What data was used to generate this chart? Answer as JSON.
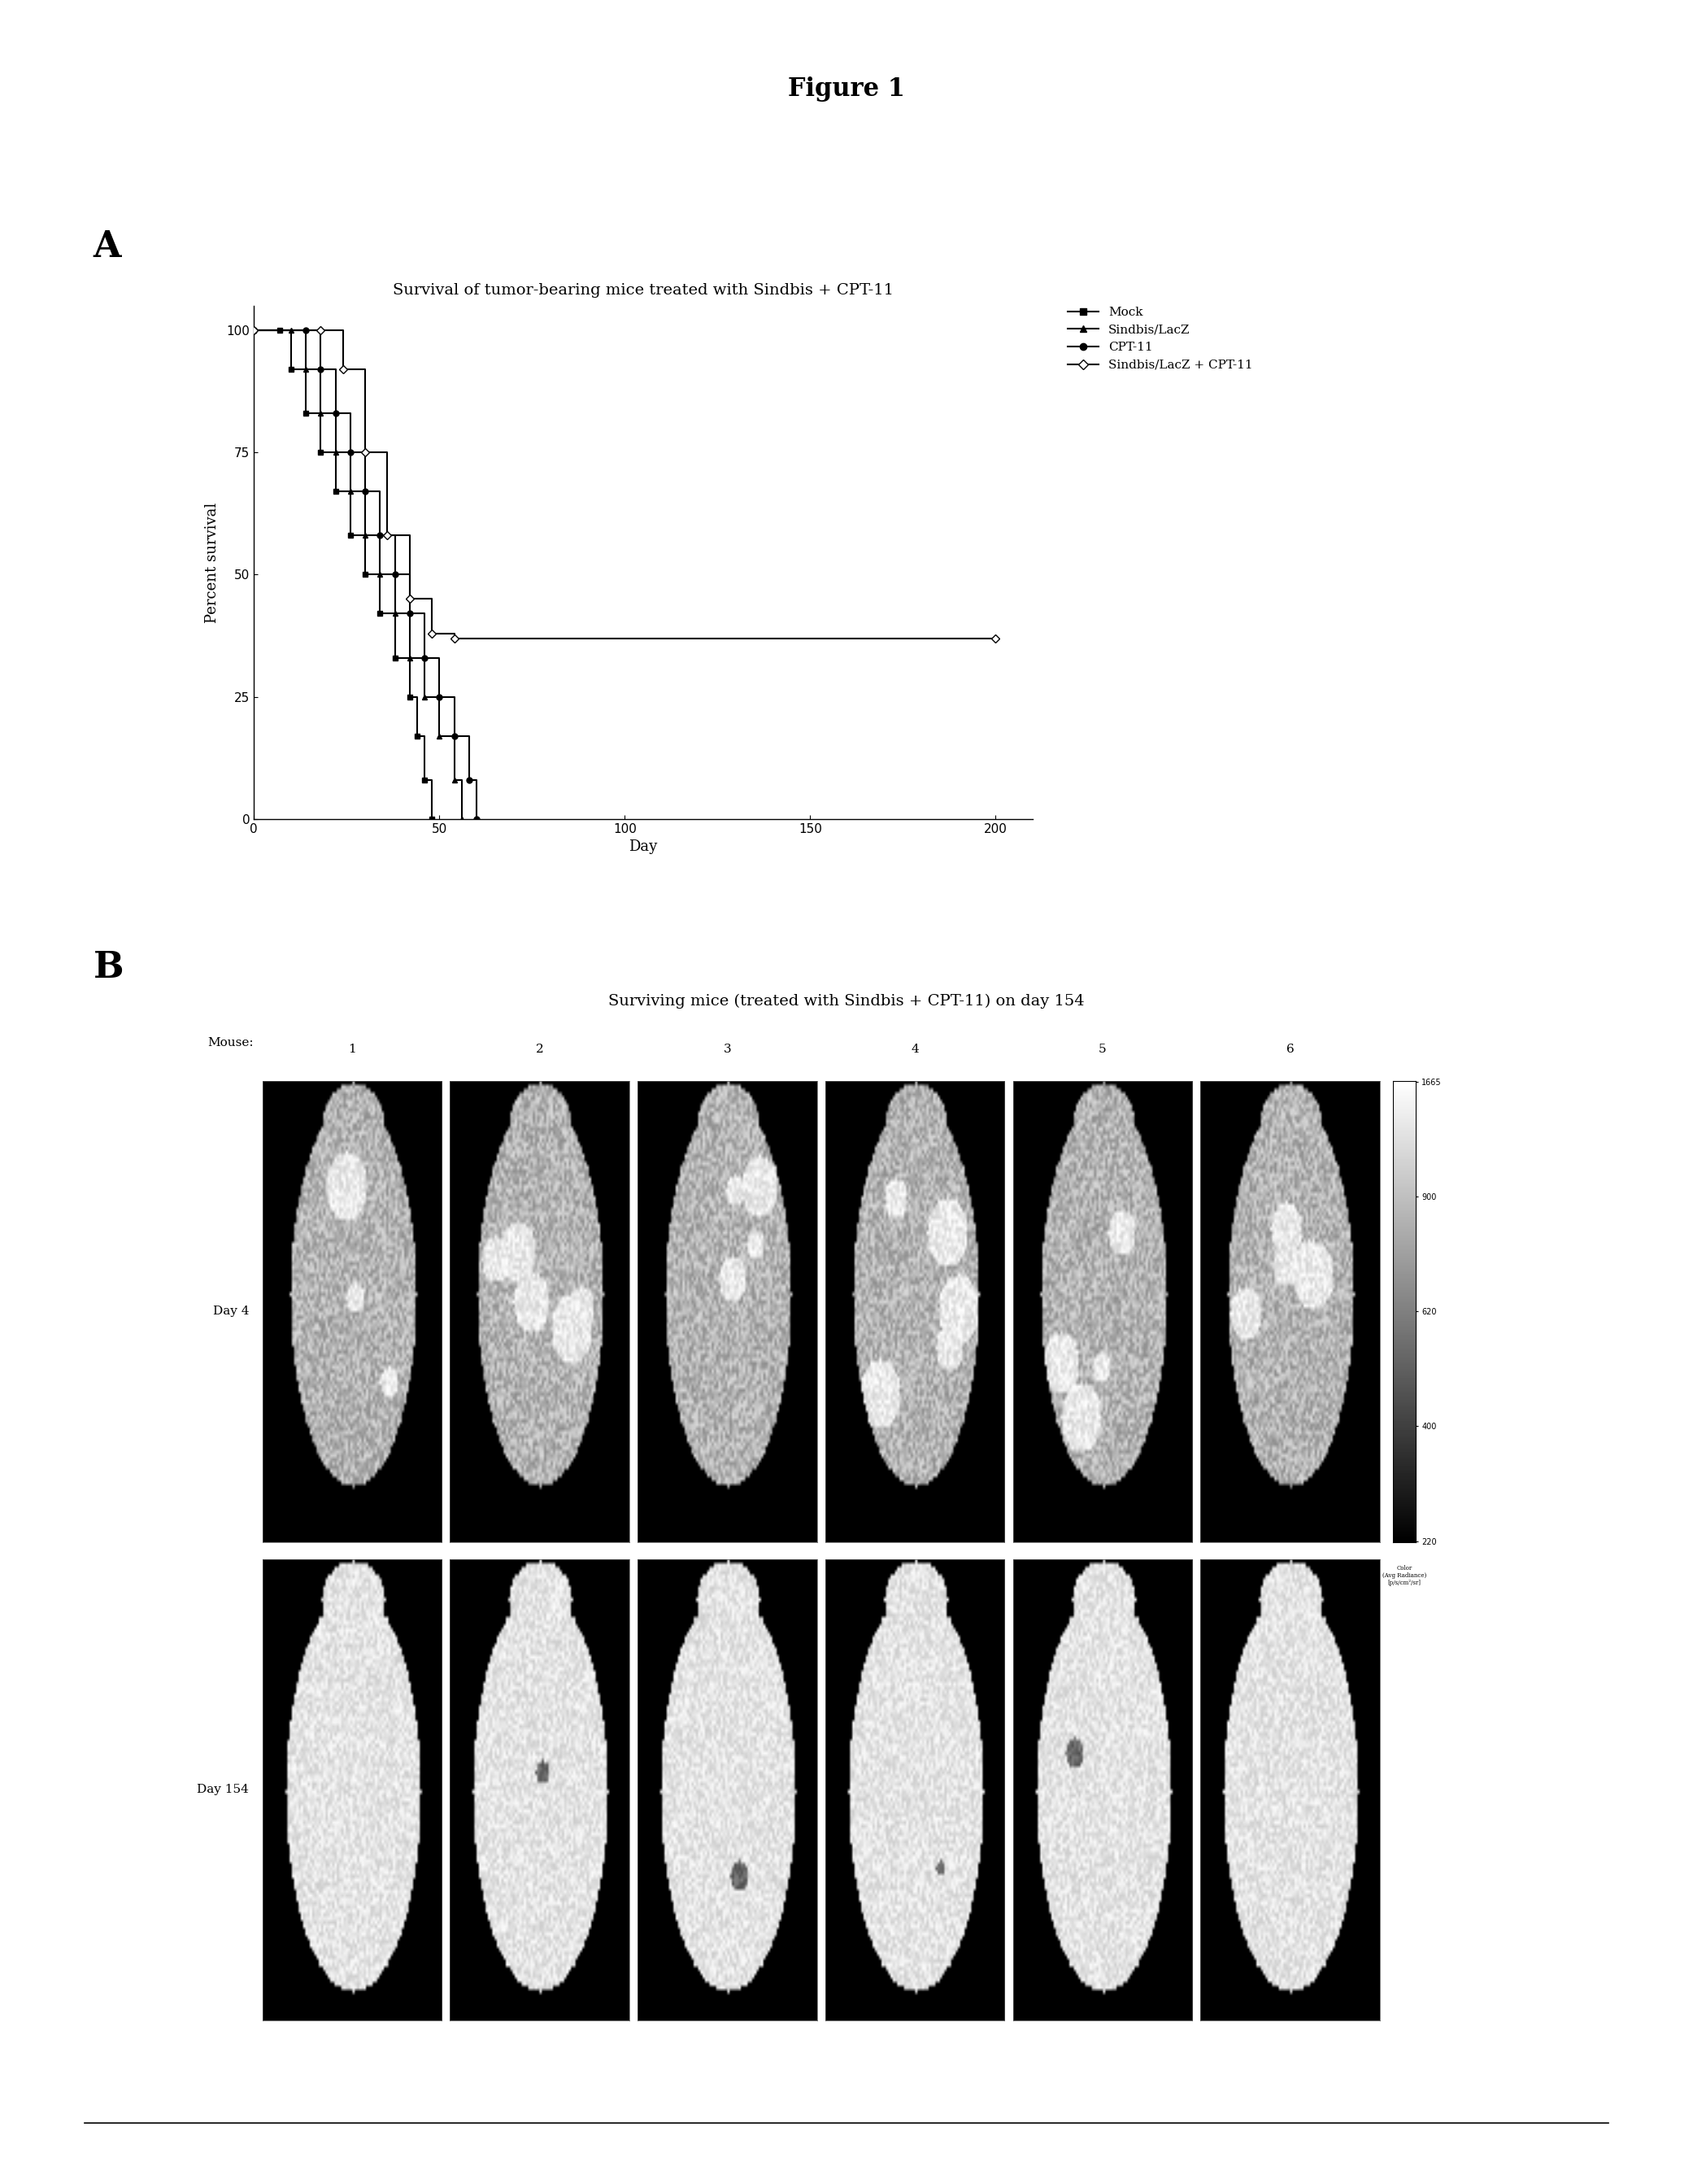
{
  "figure_title": "Figure 1",
  "panel_A_label": "A",
  "panel_B_label": "B",
  "plot_A_title": "Survival of tumor-bearing mice treated with Sindbis + CPT-11",
  "plot_B_title": "Surviving mice (treated with Sindbis + CPT-11) on day 154",
  "xlabel": "Day",
  "ylabel": "Percent survival",
  "xlim": [
    0,
    210
  ],
  "ylim": [
    0,
    105
  ],
  "xticks": [
    0,
    50,
    100,
    150,
    200
  ],
  "yticks": [
    0,
    25,
    50,
    75,
    100
  ],
  "legend_labels": [
    "Mock",
    "Sindbis/LacZ",
    "CPT-11",
    "Sindbis/LacZ + CPT-11"
  ],
  "mock_x": [
    0,
    7,
    10,
    14,
    18,
    22,
    26,
    30,
    34,
    38,
    42,
    44,
    46,
    48
  ],
  "mock_y": [
    100,
    100,
    92,
    83,
    75,
    67,
    58,
    50,
    42,
    33,
    25,
    17,
    8,
    0
  ],
  "sindbis_x": [
    0,
    10,
    14,
    18,
    22,
    26,
    30,
    34,
    38,
    42,
    46,
    50,
    54,
    56
  ],
  "sindbis_y": [
    100,
    100,
    92,
    83,
    75,
    67,
    58,
    50,
    42,
    33,
    25,
    17,
    8,
    0
  ],
  "cpt11_x": [
    0,
    14,
    18,
    22,
    26,
    30,
    34,
    38,
    42,
    46,
    50,
    54,
    58,
    60
  ],
  "cpt11_y": [
    100,
    100,
    92,
    83,
    75,
    67,
    58,
    50,
    42,
    33,
    25,
    17,
    8,
    0
  ],
  "combo_x": [
    0,
    18,
    24,
    30,
    36,
    42,
    48,
    54,
    200
  ],
  "combo_y": [
    100,
    100,
    92,
    75,
    58,
    45,
    38,
    37,
    37
  ],
  "line_color": "#000000",
  "bg_color": "#ffffff",
  "mouse_labels": [
    "1",
    "2",
    "3",
    "4",
    "5",
    "6"
  ],
  "day4_label": "Day 4",
  "day154_label": "Day 154",
  "cbar_ticks": [
    1665,
    900,
    620,
    400,
    220
  ]
}
